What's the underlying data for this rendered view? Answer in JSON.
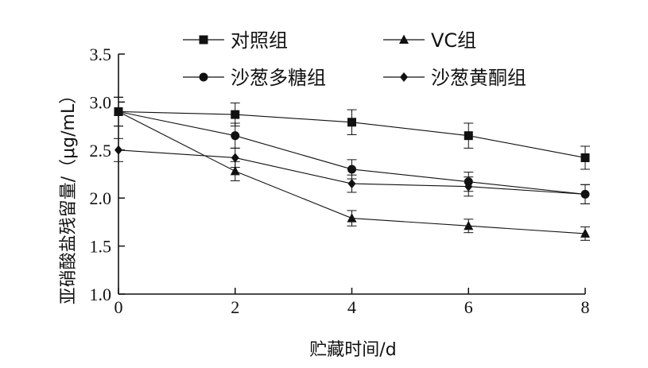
{
  "chart_data": {
    "type": "line",
    "xlabel": "贮藏时间/d",
    "ylabel": "亚硝酸盐残留量/（μg/mL）",
    "x": [
      0,
      2,
      4,
      6,
      8
    ],
    "xticks": [
      "0",
      "2",
      "4",
      "6",
      "8"
    ],
    "yticks": [
      "1.0",
      "1.5",
      "2.0",
      "2.5",
      "3.0",
      "3.5"
    ],
    "xlim": [
      0,
      8
    ],
    "ylim": [
      1.0,
      3.5
    ],
    "grid": false,
    "legend_position": "top",
    "series": [
      {
        "name": "对照组",
        "marker": "square",
        "values": [
          2.9,
          2.87,
          2.79,
          2.65,
          2.42
        ],
        "errors": [
          0.15,
          0.12,
          0.13,
          0.13,
          0.12
        ]
      },
      {
        "name": "VC组",
        "marker": "triangle",
        "values": [
          2.9,
          2.28,
          1.79,
          1.71,
          1.63
        ],
        "errors": [
          0.15,
          0.1,
          0.08,
          0.07,
          0.07
        ]
      },
      {
        "name": "沙葱多糖组",
        "marker": "circle",
        "values": [
          2.9,
          2.65,
          2.3,
          2.17,
          2.04
        ],
        "errors": [
          0.15,
          0.13,
          0.1,
          0.1,
          0.1
        ]
      },
      {
        "name": "沙葱黄酮组",
        "marker": "diamond",
        "values": [
          2.5,
          2.42,
          2.15,
          2.12,
          2.04
        ],
        "errors": [
          0.12,
          0.1,
          0.09,
          0.1,
          0.1
        ]
      }
    ]
  }
}
